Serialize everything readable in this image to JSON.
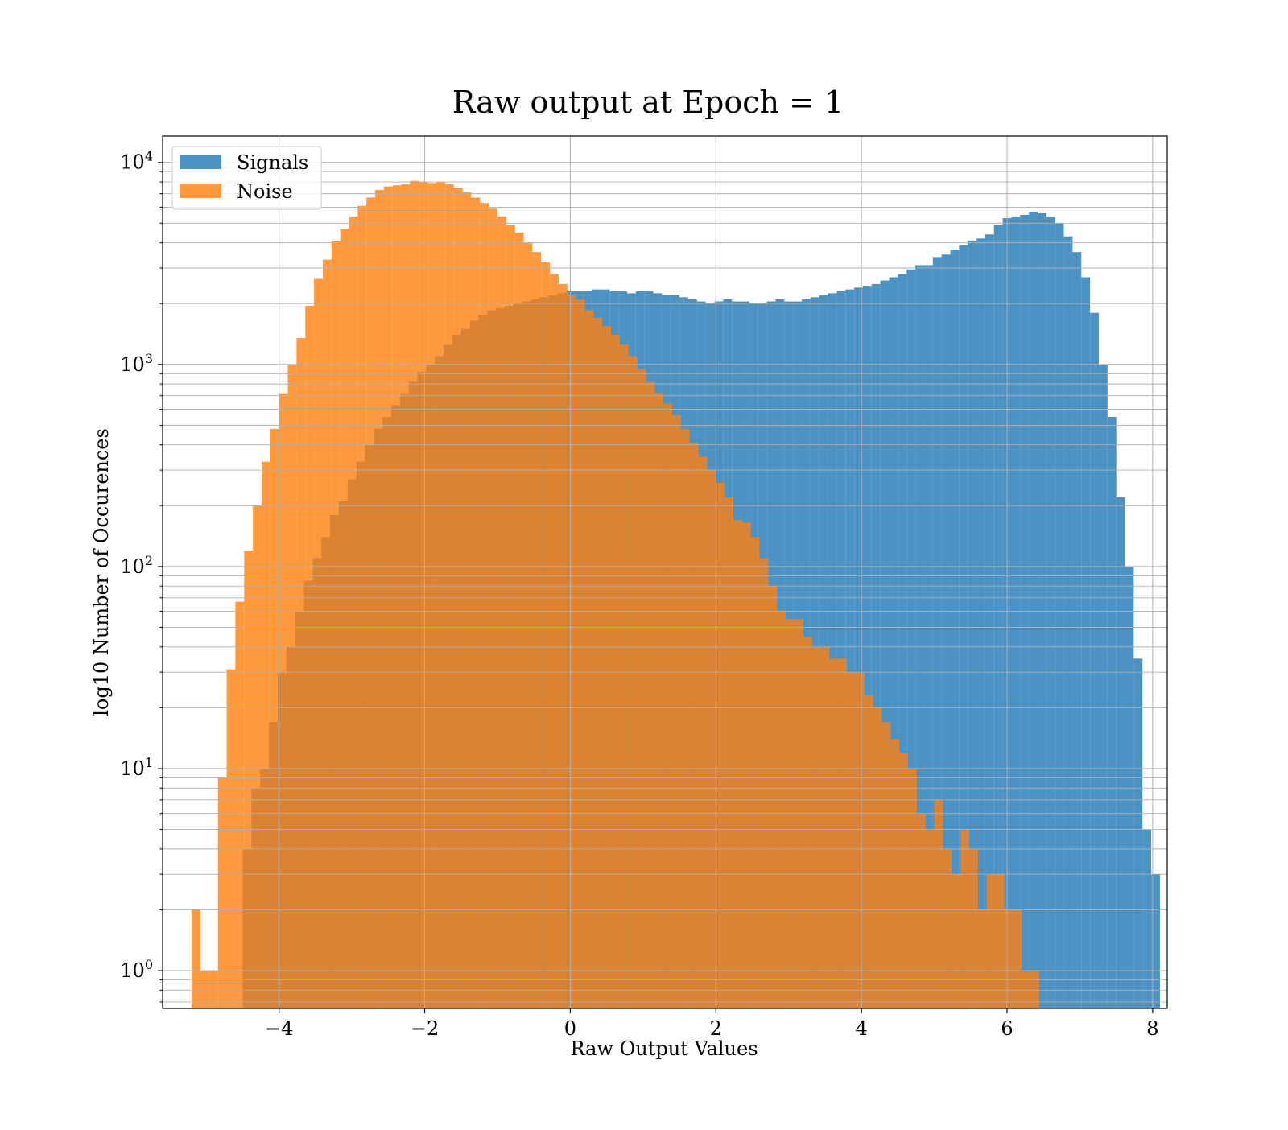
{
  "chart_data": {
    "type": "bar",
    "title": "Raw output at Epoch = 1",
    "xlabel": "Raw Output Values",
    "ylabel": "log10 Number of Occurences",
    "xlim": [
      -5.6,
      8.2
    ],
    "ylim": [
      0.65,
      13500
    ],
    "yscale": "log",
    "grid": true,
    "legend_position": "top-left",
    "xticks": [
      -4,
      -2,
      0,
      2,
      4,
      6,
      8
    ],
    "xtick_labels": [
      "−4",
      "−2",
      "0",
      "2",
      "4",
      "6",
      "8"
    ],
    "ytick_labels": [
      {
        "base": "10",
        "exp": "0",
        "value": 1
      },
      {
        "base": "10",
        "exp": "1",
        "value": 10
      },
      {
        "base": "10",
        "exp": "2",
        "value": 100
      },
      {
        "base": "10",
        "exp": "3",
        "value": 1000
      },
      {
        "base": "10",
        "exp": "4",
        "value": 10000
      }
    ],
    "series": [
      {
        "name": "Signals",
        "color": "#1f77b4",
        "bin_start": -4.5,
        "bin_width": 0.12,
        "values": [
          4,
          8,
          10,
          17,
          30,
          40,
          60,
          85,
          110,
          140,
          180,
          210,
          270,
          330,
          400,
          480,
          550,
          630,
          720,
          820,
          920,
          1000,
          1100,
          1250,
          1400,
          1500,
          1650,
          1750,
          1850,
          1900,
          1950,
          2000,
          2050,
          2100,
          2150,
          2200,
          2250,
          2300,
          2300,
          2300,
          2350,
          2350,
          2300,
          2300,
          2250,
          2300,
          2300,
          2250,
          2200,
          2200,
          2150,
          2100,
          2050,
          2000,
          2050,
          2100,
          2050,
          2050,
          2000,
          2000,
          2050,
          2100,
          2050,
          2050,
          2100,
          2150,
          2200,
          2250,
          2300,
          2350,
          2400,
          2450,
          2500,
          2600,
          2700,
          2800,
          2950,
          3100,
          3100,
          3400,
          3500,
          3700,
          3900,
          4100,
          4200,
          4400,
          4900,
          5300,
          5400,
          5500,
          5700,
          5600,
          5400,
          5000,
          4300,
          3600,
          2700,
          1800,
          1000,
          550,
          220,
          100,
          35,
          5,
          3
        ]
      },
      {
        "name": "Noise",
        "color": "#ff7f0e",
        "bin_start": -5.2,
        "bin_width": 0.12,
        "values": [
          2,
          1,
          1,
          9,
          31,
          67,
          120,
          200,
          330,
          480,
          720,
          1000,
          1350,
          1950,
          2650,
          3300,
          4100,
          4700,
          5400,
          6100,
          6700,
          7300,
          7600,
          7700,
          7800,
          8100,
          8000,
          7900,
          8000,
          7800,
          7500,
          7100,
          6700,
          6300,
          5900,
          5400,
          4900,
          4500,
          4000,
          3600,
          3200,
          2800,
          2500,
          2200,
          2100,
          1850,
          1700,
          1550,
          1400,
          1250,
          1100,
          950,
          820,
          720,
          640,
          560,
          480,
          410,
          350,
          300,
          260,
          220,
          170,
          165,
          140,
          110,
          80,
          60,
          55,
          55,
          45,
          40,
          40,
          35,
          35,
          30,
          30,
          23,
          20,
          17,
          14,
          12,
          10,
          6,
          5,
          7,
          4,
          3,
          5,
          4,
          2,
          3,
          3,
          2,
          2,
          1,
          1
        ]
      }
    ]
  }
}
